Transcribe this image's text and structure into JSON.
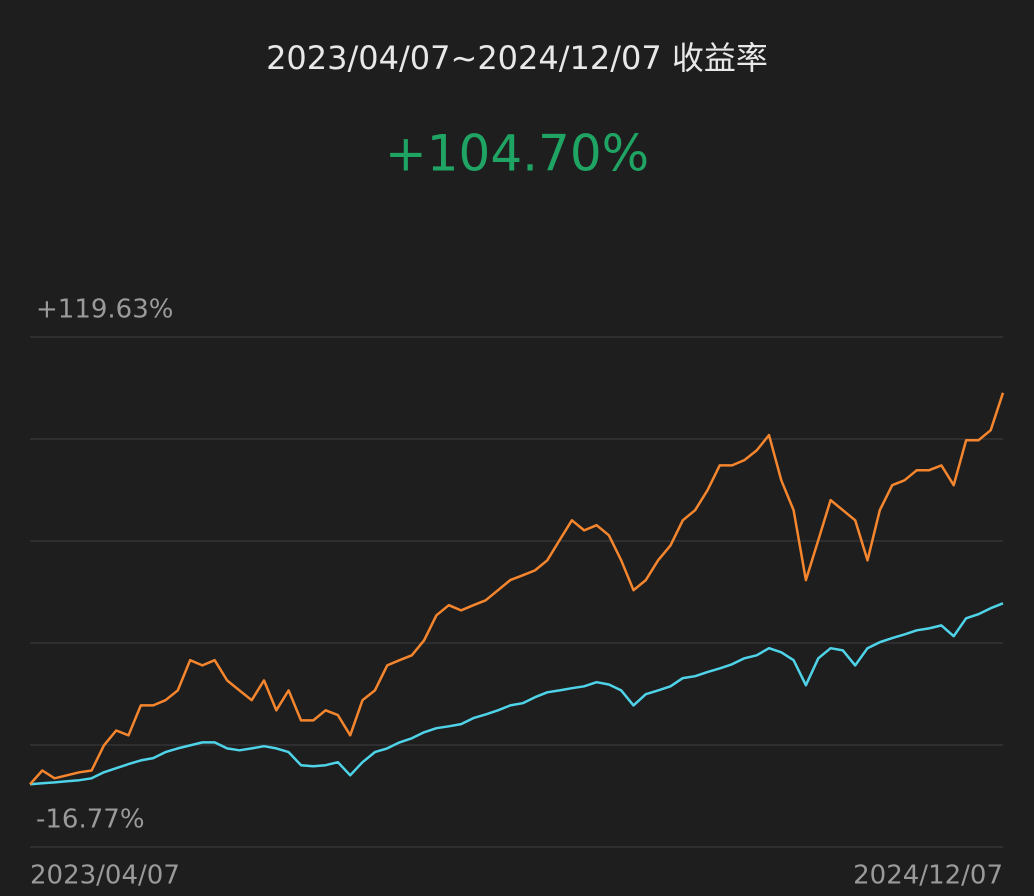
{
  "chart_data": {
    "type": "line",
    "title": "2023/04/07~2024/12/07 收益率",
    "subtitle": "+104.70%",
    "categories": [
      "2023/04/07",
      null,
      null,
      null,
      null,
      null,
      null,
      null,
      null,
      null,
      null,
      null,
      null,
      null,
      null,
      null,
      null,
      null,
      null,
      null,
      null,
      null,
      null,
      null,
      null,
      null,
      null,
      null,
      null,
      null,
      null,
      null,
      null,
      null,
      null,
      null,
      null,
      null,
      null,
      null,
      null,
      null,
      null,
      null,
      null,
      null,
      null,
      null,
      null,
      null,
      null,
      null,
      null,
      null,
      null,
      null,
      null,
      null,
      null,
      null,
      null,
      null,
      null,
      null,
      null,
      null,
      null,
      null,
      null,
      null,
      null,
      null,
      null,
      null,
      null,
      null,
      null,
      null,
      null,
      "2024/12/07"
    ],
    "series": [
      {
        "color": "#f5862e",
        "values": [
          0,
          3.7,
          1.6,
          2.4,
          3.2,
          3.7,
          10.4,
          14.4,
          13.1,
          21.1,
          21.1,
          22.5,
          25.1,
          33.2,
          31.8,
          33.2,
          27.8,
          25.1,
          22.5,
          27.8,
          19.8,
          25.1,
          17.1,
          17.1,
          19.8,
          18.5,
          13.1,
          22.5,
          25.1,
          31.8,
          33.2,
          34.5,
          38.5,
          45.2,
          47.9,
          46.5,
          47.9,
          49.2,
          51.9,
          54.6,
          55.9,
          57.2,
          59.9,
          65.3,
          70.6,
          67.9,
          69.3,
          66.6,
          59.9,
          51.9,
          54.6,
          59.9,
          63.9,
          70.6,
          73.3,
          78.6,
          85.3,
          85.3,
          86.7,
          89.3,
          93.4,
          81.3,
          73.3,
          54.6,
          65.3,
          76.0,
          73.3,
          70.6,
          59.9,
          73.3,
          80.0,
          81.3,
          84.0,
          84.0,
          85.3,
          80.0,
          92.0,
          92.0,
          94.7,
          104.7
        ]
      },
      {
        "color": "#4fd3e8",
        "values": [
          0,
          0.3,
          0.5,
          0.8,
          1.1,
          1.6,
          3.2,
          4.3,
          5.4,
          6.4,
          7.0,
          8.6,
          9.6,
          10.4,
          11.2,
          11.2,
          9.6,
          9.1,
          9.6,
          10.2,
          9.6,
          8.6,
          5.1,
          4.8,
          5.1,
          5.9,
          2.4,
          5.9,
          8.6,
          9.6,
          11.2,
          12.3,
          13.9,
          15.0,
          15.5,
          16.1,
          17.7,
          18.7,
          19.8,
          21.1,
          21.7,
          23.3,
          24.6,
          25.1,
          25.7,
          26.2,
          27.3,
          26.7,
          25.1,
          21.1,
          24.1,
          25.1,
          26.2,
          28.4,
          28.9,
          30.0,
          31.0,
          32.1,
          33.7,
          34.5,
          36.4,
          35.3,
          33.2,
          26.5,
          33.7,
          36.4,
          35.8,
          31.8,
          36.4,
          38.0,
          39.1,
          40.1,
          41.2,
          41.7,
          42.5,
          39.6,
          44.4,
          45.5,
          47.1,
          48.4
        ]
      }
    ],
    "ylim": [
      -16.77,
      119.63
    ],
    "yticks": [
      {
        "value": 119.63,
        "label": "+119.63%"
      },
      {
        "value": 92.35,
        "label": null
      },
      {
        "value": 65.07,
        "label": null
      },
      {
        "value": 37.79,
        "label": null
      },
      {
        "value": 10.51,
        "label": null
      },
      {
        "value": -16.77,
        "label": "-16.77%"
      }
    ],
    "grid": true
  }
}
